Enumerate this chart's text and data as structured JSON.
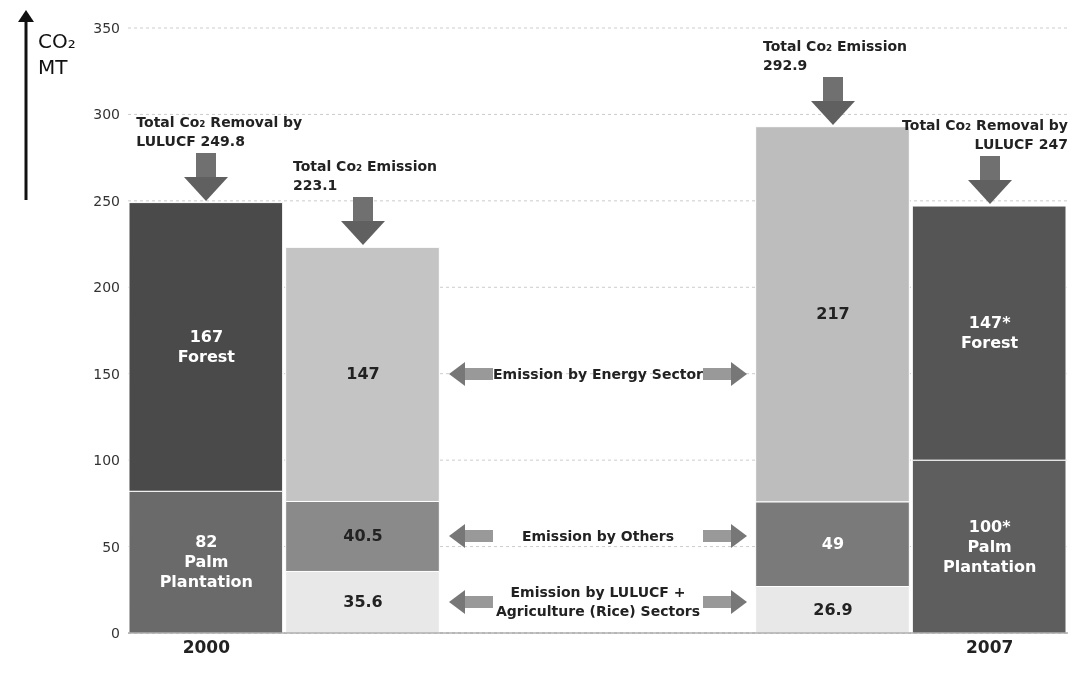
{
  "chart_data": {
    "type": "bar",
    "stacked": true,
    "ylabel": "CO₂ MT",
    "categories": [
      "2000",
      null,
      null,
      "2007"
    ],
    "series": [
      {
        "colors": [
          "#6a6a6a",
          "#e8e8e8",
          "#e8e8e8",
          "#5e5e5e"
        ],
        "values": [
          82,
          35.6,
          26.9,
          100
        ],
        "value_labels": [
          "82\nPalm\nPlantation",
          "35.6",
          "26.9",
          "100*\nPalm\nPlantation"
        ]
      },
      {
        "colors": [
          "#4a4a4a",
          "#8a8a8a",
          "#7a7a7a",
          "#555555"
        ],
        "values": [
          167,
          40.5,
          49,
          147
        ],
        "value_labels": [
          "167\nForest",
          "40.5",
          "49",
          "147*\nForest"
        ]
      },
      {
        "colors": [
          "#cfcfcf",
          "#c4c4c4",
          "#bdbdbd",
          "#cfcfcf"
        ],
        "values": [
          null,
          147,
          217,
          null
        ],
        "value_labels": [
          null,
          "147",
          "217",
          null
        ]
      }
    ],
    "annotations": [
      "Total Co₂ Removal by LULUCF 249.8",
      "Total Co₂ Emission 223.1",
      "Total Co₂ Emission 292.9",
      "Total Co₂ Removal by LULUCF 247",
      "Emission by LULUCF + Agriculture (Rice) Sectors",
      "Emission by Others",
      "Emission by Energy Sector"
    ],
    "ylim": [
      0,
      350
    ],
    "yticks": [
      0,
      50,
      100,
      150,
      200,
      250,
      300,
      350
    ],
    "grid": "y"
  }
}
